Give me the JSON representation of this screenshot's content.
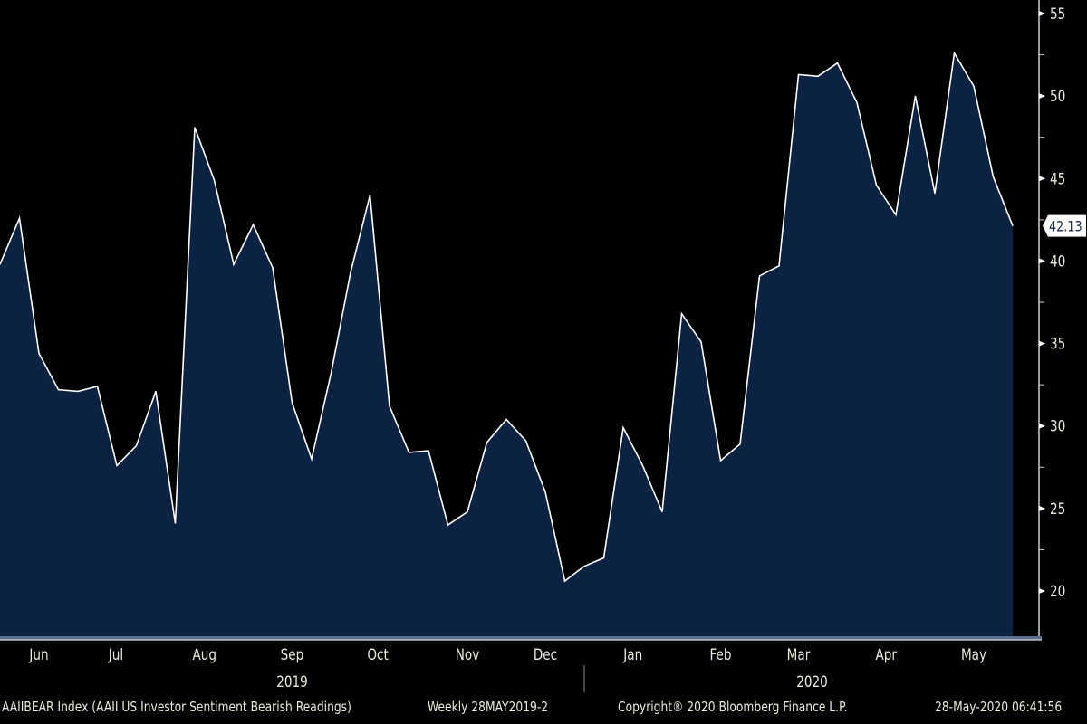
{
  "chart_data": {
    "type": "area",
    "title": "AAIIBEAR Index (AAII US Investor Sentiment Bearish Readings)",
    "frequency": "Weekly",
    "range_label": "28MAY2019-2",
    "x_unit": "week index from 28-May-2019",
    "values": [
      39.8,
      42.6,
      34.4,
      32.2,
      32.1,
      32.4,
      27.6,
      28.8,
      32.1,
      24.1,
      48.1,
      44.9,
      39.8,
      42.2,
      39.6,
      31.4,
      28.0,
      33.2,
      39.3,
      44.0,
      31.2,
      28.4,
      28.5,
      24.0,
      24.8,
      29.0,
      30.4,
      29.1,
      26.0,
      20.6,
      21.5,
      22.0,
      29.9,
      27.6,
      24.8,
      36.8,
      35.1,
      27.9,
      28.9,
      39.1,
      39.7,
      51.3,
      51.2,
      52.0,
      49.6,
      44.6,
      42.8,
      50.0,
      44.1,
      52.6,
      50.6,
      45.1,
      42.13
    ],
    "last_value_label": "42.13",
    "ylim": [
      17.5,
      56
    ],
    "y_ticks": [
      20,
      25,
      30,
      35,
      40,
      45,
      50,
      55
    ],
    "month_labels": [
      {
        "label": "Jun",
        "week": 2
      },
      {
        "label": "Jul",
        "week": 5.95
      },
      {
        "label": "Aug",
        "week": 10.5
      },
      {
        "label": "Sep",
        "week": 15
      },
      {
        "label": "Oct",
        "week": 19.4
      },
      {
        "label": "Nov",
        "week": 24
      },
      {
        "label": "Dec",
        "week": 28
      },
      {
        "label": "Jan",
        "week": 32.5
      },
      {
        "label": "Feb",
        "week": 37
      },
      {
        "label": "Mar",
        "week": 41
      },
      {
        "label": "Apr",
        "week": 45.5
      },
      {
        "label": "May",
        "week": 50
      }
    ],
    "year_labels": [
      {
        "label": "2019",
        "week": 15
      },
      {
        "label": "2020",
        "week": 41.7
      }
    ],
    "year_divider_week": 30,
    "fill_color": "#0c2242",
    "line_color": "#ffffff"
  },
  "footer": {
    "title": "AAIIBEAR Index (AAII US Investor Sentiment Bearish Readings)",
    "range": "Weekly 28MAY2019-2",
    "copyright": "Copyright® 2020 Bloomberg Finance L.P.",
    "timestamp": "28-May-2020 06:41:56"
  }
}
